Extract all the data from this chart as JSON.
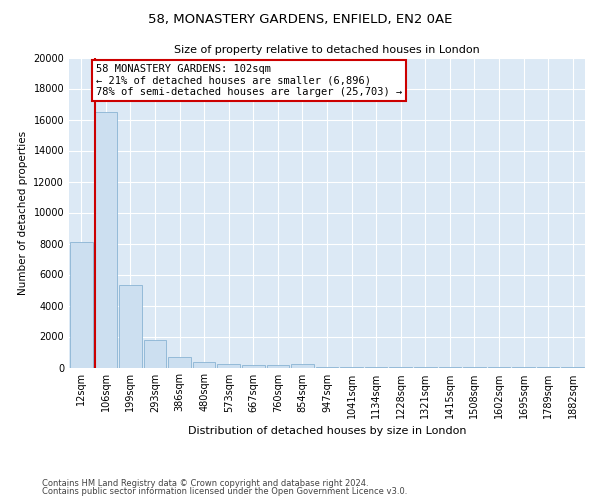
{
  "title": "58, MONASTERY GARDENS, ENFIELD, EN2 0AE",
  "subtitle": "Size of property relative to detached houses in London",
  "xlabel": "Distribution of detached houses by size in London",
  "ylabel": "Number of detached properties",
  "bar_color": "#ccdff0",
  "bar_edge_color": "#8ab4d4",
  "bg_color": "#dce9f5",
  "grid_color": "#ffffff",
  "fig_color": "#ffffff",
  "categories": [
    "12sqm",
    "106sqm",
    "199sqm",
    "293sqm",
    "386sqm",
    "480sqm",
    "573sqm",
    "667sqm",
    "760sqm",
    "854sqm",
    "947sqm",
    "1041sqm",
    "1134sqm",
    "1228sqm",
    "1321sqm",
    "1415sqm",
    "1508sqm",
    "1602sqm",
    "1695sqm",
    "1789sqm",
    "1882sqm"
  ],
  "bar_values": [
    8100,
    16500,
    5300,
    1750,
    650,
    350,
    200,
    175,
    150,
    200,
    50,
    30,
    20,
    15,
    10,
    8,
    5,
    4,
    3,
    2,
    1
  ],
  "ylim": [
    0,
    20000
  ],
  "yticks": [
    0,
    2000,
    4000,
    6000,
    8000,
    10000,
    12000,
    14000,
    16000,
    18000,
    20000
  ],
  "property_bar_index": 1,
  "annotation_line1": "58 MONASTERY GARDENS: 102sqm",
  "annotation_line2": "← 21% of detached houses are smaller (6,896)",
  "annotation_line3": "78% of semi-detached houses are larger (25,703) →",
  "annotation_box_color": "#cc0000",
  "red_line_color": "#cc0000",
  "footnote_line1": "Contains HM Land Registry data © Crown copyright and database right 2024.",
  "footnote_line2": "Contains public sector information licensed under the Open Government Licence v3.0.",
  "title_fontsize": 9.5,
  "subtitle_fontsize": 8.0,
  "ylabel_fontsize": 7.5,
  "xlabel_fontsize": 8.0,
  "tick_fontsize": 7.0,
  "annot_fontsize": 7.5,
  "footnote_fontsize": 6.0
}
